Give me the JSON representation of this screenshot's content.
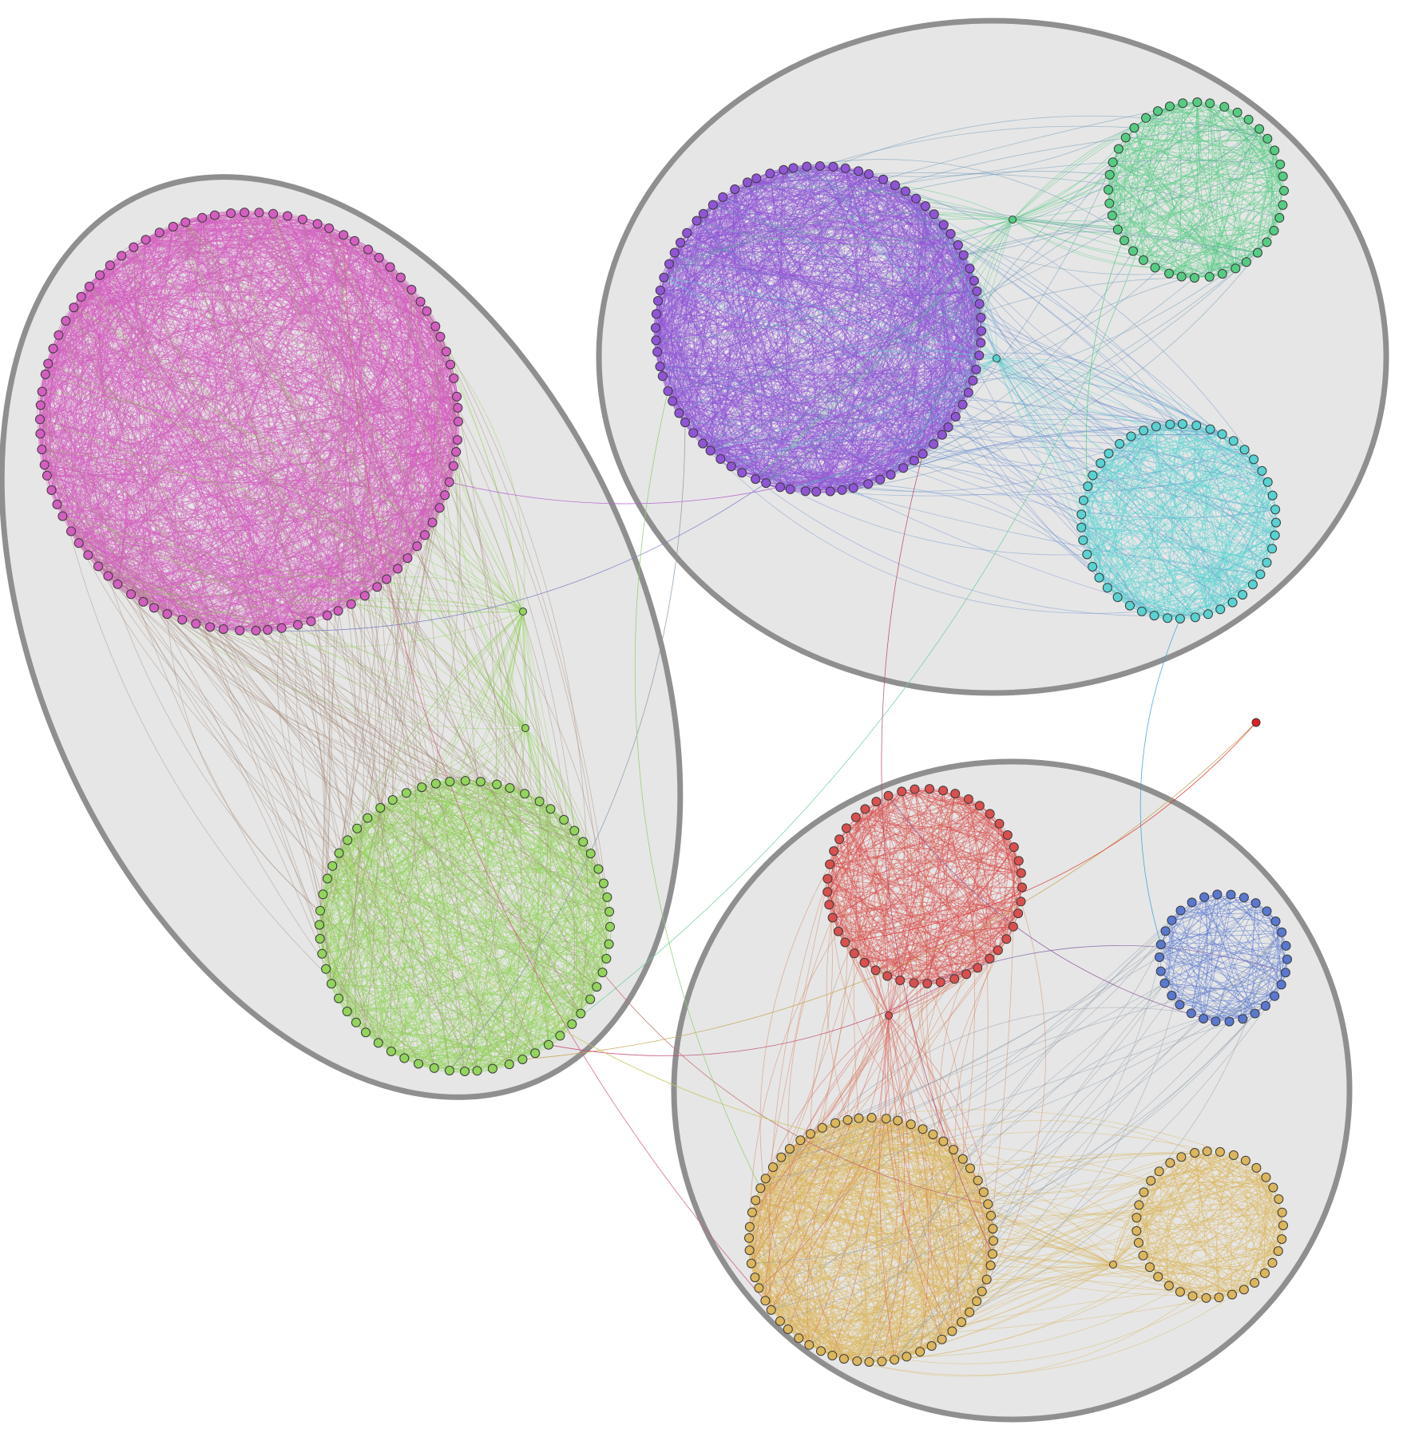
{
  "diagram": {
    "type": "clustered-network",
    "groups": [
      {
        "id": "group-left",
        "communities": [
          {
            "id": "magenta",
            "color": "#d35ec0",
            "nodes": 90
          },
          {
            "id": "lime",
            "color": "#93d45c",
            "nodes": 60
          }
        ],
        "connectors": [
          {
            "color": "#93d45c",
            "links": [
              "magenta",
              "lime"
            ]
          },
          {
            "color": "#93d45c",
            "links": [
              "magenta",
              "lime"
            ]
          }
        ]
      },
      {
        "id": "group-top-right",
        "communities": [
          {
            "id": "purple",
            "color": "#9055d6",
            "nodes": 80
          },
          {
            "id": "green",
            "color": "#56cc83",
            "nodes": 40
          },
          {
            "id": "cyan",
            "color": "#58d2d2",
            "nodes": 45
          }
        ],
        "connectors": [
          {
            "color": "#56cc83",
            "links": [
              "purple",
              "green"
            ]
          },
          {
            "color": "#58d2d2",
            "links": [
              "purple",
              "cyan"
            ]
          }
        ]
      },
      {
        "id": "group-bottom-right",
        "communities": [
          {
            "id": "red",
            "color": "#d9504f",
            "nodes": 45
          },
          {
            "id": "blue",
            "color": "#5a78d0",
            "nodes": 30
          },
          {
            "id": "gold-large",
            "color": "#dcb65c",
            "nodes": 60
          },
          {
            "id": "gold-small",
            "color": "#dcb65c",
            "nodes": 35
          }
        ],
        "connectors": [
          {
            "color": "#d9504f",
            "links": [
              "red",
              "gold-large"
            ]
          },
          {
            "color": "#dcb65c",
            "links": [
              "gold-large",
              "gold-small"
            ]
          }
        ]
      }
    ],
    "isolated_nodes": [
      {
        "id": "outlier",
        "color": "#e02020"
      }
    ],
    "bridge_edges": [
      {
        "from": "magenta",
        "to": "purple",
        "color": "#b25fd0"
      },
      {
        "from": "magenta",
        "to": "purple",
        "color": "#7a7fc4"
      },
      {
        "from": "lime",
        "to": "purple",
        "color": "#8a9cae"
      },
      {
        "from": "lime",
        "to": "green",
        "color": "#6fcf9a"
      },
      {
        "from": "lime",
        "to": "outlier",
        "color": "#c4a650"
      },
      {
        "from": "lime",
        "to": "red",
        "color": "#c04a70"
      },
      {
        "from": "lime",
        "to": "gold-large",
        "color": "#c56a6a"
      },
      {
        "from": "magenta",
        "to": "gold-large",
        "color": "#d05f7f"
      },
      {
        "from": "purple",
        "to": "gold-large",
        "color": "#b84a6a"
      },
      {
        "from": "lime",
        "to": "gold-large",
        "color": "#c9c45a"
      },
      {
        "from": "purple",
        "to": "gold-large",
        "color": "#8fcf6a"
      },
      {
        "from": "cyan",
        "to": "blue",
        "color": "#3aa0d8"
      },
      {
        "from": "red",
        "to": "outlier",
        "color": "#e03030"
      },
      {
        "from": "red",
        "to": "blue",
        "color": "#8a5a9a"
      },
      {
        "from": "blue",
        "to": "red",
        "color": "#8a70a8"
      },
      {
        "from": "green",
        "to": "cyan",
        "color": "#56cc83"
      }
    ]
  }
}
